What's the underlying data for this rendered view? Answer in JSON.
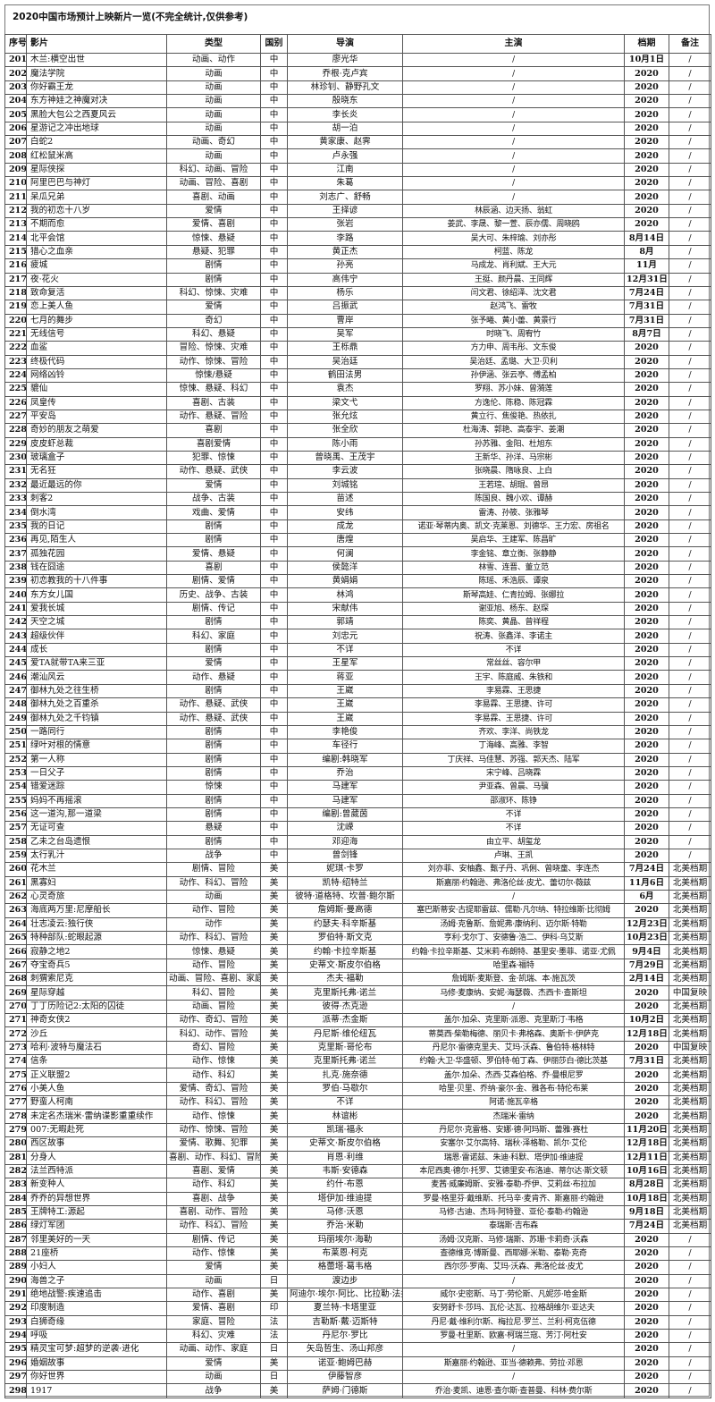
{
  "title": "2020中国市场预计上映新片一览(不完全统计,仅供参考)",
  "headers": [
    "序号",
    "影片",
    "类型",
    "国别",
    "导演",
    "主演",
    "档期",
    "备注"
  ],
  "rows": [
    [
      "201",
      "木兰:横空出世",
      "动画、动作",
      "中",
      "廖光华",
      "/",
      "10月1日",
      "/"
    ],
    [
      "202",
      "魔法学院",
      "动画",
      "中",
      "乔根·克卢宾",
      "/",
      "2020",
      "/"
    ],
    [
      "203",
      "你好霸王龙",
      "动画",
      "中",
      "林珍钊、静野孔文",
      "/",
      "2020",
      "/"
    ],
    [
      "204",
      "东方神娃之神魔对决",
      "动画",
      "中",
      "殷晓东",
      "/",
      "2020",
      "/"
    ],
    [
      "205",
      "黑脸大包公之西夏风云",
      "动画",
      "中",
      "李长炎",
      "/",
      "2020",
      "/"
    ],
    [
      "206",
      "星游记之冲出地球",
      "动画",
      "中",
      "胡一泊",
      "/",
      "2020",
      "/"
    ],
    [
      "207",
      "白蛇2",
      "动画、奇幻",
      "中",
      "黄家康、赵霁",
      "/",
      "2020",
      "/"
    ],
    [
      "208",
      "红松鼠米高",
      "动画",
      "中",
      "卢永强",
      "/",
      "2020",
      "/"
    ],
    [
      "209",
      "星际侠探",
      "科幻、动画、冒险",
      "中",
      "江南",
      "/",
      "2020",
      "/"
    ],
    [
      "210",
      "阿里巴巴与神灯",
      "动画、冒险、喜剧",
      "中",
      "朱葛",
      "/",
      "2020",
      "/"
    ],
    [
      "211",
      "呆瓜兄弟",
      "喜剧、动画",
      "中",
      "刘志广、舒畅",
      "/",
      "2020",
      "/"
    ],
    [
      "212",
      "我的初恋十八岁",
      "爱情",
      "中",
      "王择谚",
      "林辰涵、边天扬、翁虹",
      "2020",
      "/"
    ],
    [
      "213",
      "不期而愈",
      "爱情、喜剧",
      "中",
      "张岩",
      "姜武、李晟、黎一萱、辰亦儒、周晓鸥",
      "2020",
      "/"
    ],
    [
      "214",
      "北平会馆",
      "惊悚、悬疑",
      "中",
      "李路",
      "吴大可、朱梓瑜、刘亦彤",
      "8月14日",
      "/"
    ],
    [
      "215",
      "猎心之血亲",
      "悬疑、犯罪",
      "中",
      "黄正杰",
      "柯蓝、陈龙",
      "8月",
      "/"
    ],
    [
      "216",
      "疲城",
      "剧情",
      "中",
      "孙亮",
      "马成龙、肖利斌、王大元",
      "11月",
      "/"
    ],
    [
      "217",
      "夜·花火",
      "剧情",
      "中",
      "高伟宁",
      "王挺、颜丹晨、王同辉",
      "12月31日",
      "/"
    ],
    [
      "218",
      "致命复活",
      "科幻、惊悚、灾难",
      "中",
      "杨乐",
      "闫文君、徐绍泽、沈文君",
      "7月24日",
      "/"
    ],
    [
      "219",
      "恋上美人鱼",
      "爱情",
      "中",
      "吕振武",
      "赵鸿飞、雷牧",
      "7月31日",
      "/"
    ],
    [
      "220",
      "七月的舞步",
      "奇幻",
      "中",
      "曹岸",
      "张予曦、黄小蕾、黄景行",
      "7月31日",
      "/"
    ],
    [
      "221",
      "无线信号",
      "科幻、悬疑",
      "中",
      "吴军",
      "时晓飞、周宥竹",
      "8月7日",
      "/"
    ],
    [
      "222",
      "血鲨",
      "冒险、惊悚、灾难",
      "中",
      "王栎鼎",
      "方力申、周韦彤、文东俊",
      "2020",
      "/"
    ],
    [
      "223",
      "终极代码",
      "动作、惊悚、冒险",
      "中",
      "吴治廷",
      "吴治廷、孟璐、大卫·贝利",
      "2020",
      "/"
    ],
    [
      "224",
      "网络凶铃",
      "惊悚/悬疑",
      "中",
      "鹤田法男",
      "孙伊涵、张云亭、傅孟柏",
      "2020",
      "/"
    ],
    [
      "225",
      "貔仙",
      "惊悚、悬疑、科幻",
      "中",
      "袁杰",
      "罗翔、苏小妹、曾漪莲",
      "2020",
      "/"
    ],
    [
      "226",
      "凤皇传",
      "喜剧、古装",
      "中",
      "梁文弋",
      "方逸伦、陈稳、陈冠霖",
      "2020",
      "/"
    ],
    [
      "227",
      "平安岛",
      "动作、悬疑、冒险",
      "中",
      "张允炫",
      "黄立行、焦俊艳、热依扎",
      "2020",
      "/"
    ],
    [
      "228",
      "奇妙的朋友之萌爱",
      "喜剧",
      "中",
      "张全欣",
      "杜海涛、郭艳、高泰宇、姜潮",
      "2020",
      "/"
    ],
    [
      "229",
      "皮皮虾总裁",
      "喜剧爱情",
      "中",
      "陈小雨",
      "孙苏雅、金阳、杜旭东",
      "2020",
      "/"
    ],
    [
      "230",
      "玻璃盒子",
      "犯罪、惊悚",
      "中",
      "曾晓禹、王茂宇",
      "王新华、孙洋、马宗彬",
      "2020",
      "/"
    ],
    [
      "231",
      "无名狂",
      "动作、悬疑、武侠",
      "中",
      "李云波",
      "张晓晨、隋咏良、上白",
      "2020",
      "/"
    ],
    [
      "232",
      "最近最远的你",
      "爱情",
      "中",
      "刘城铭",
      "王若瑄、胡琨、曾昂",
      "2020",
      "/"
    ],
    [
      "233",
      "刺客2",
      "战争、古装",
      "中",
      "苗述",
      "陈国良、魏小欢、谭赫",
      "2020",
      "/"
    ],
    [
      "234",
      "倒水湾",
      "戏曲、爱情",
      "中",
      "安纬",
      "雷涛、孙筱、张雅琴",
      "2020",
      "/"
    ],
    [
      "235",
      "我的日记",
      "剧情",
      "中",
      "成龙",
      "诺亚·琴蒂内奥、凯文·克莱恩、刘德华、王力宏、房祖名",
      "2020",
      "/"
    ],
    [
      "236",
      "再见,陌生人",
      "剧情",
      "中",
      "唐煌",
      "吴启华、王建军、陈昌旷",
      "2020",
      "/"
    ],
    [
      "237",
      "孤独花园",
      "爱情、悬疑",
      "中",
      "何澜",
      "李金铭、章立衡、张静静",
      "2020",
      "/"
    ],
    [
      "238",
      "钱在囧途",
      "喜剧",
      "中",
      "侯懿洋",
      "林雪、连晋、董立范",
      "2020",
      "/"
    ],
    [
      "239",
      "初恋教我的十八件事",
      "剧情、爱情",
      "中",
      "黄娟娟",
      "陈瑶、禾浩辰、谭泉",
      "2020",
      "/"
    ],
    [
      "240",
      "东方女儿国",
      "历史、战争、古装",
      "中",
      "林鸿",
      "斯琴高娃、仁青拉姆、张娜拉",
      "2020",
      "/"
    ],
    [
      "241",
      "爱我长城",
      "剧情、传记",
      "中",
      "宋献伟",
      "谢亚旭、杨东、赵琛",
      "2020",
      "/"
    ],
    [
      "242",
      "天空之城",
      "剧情",
      "中",
      "郭靖",
      "陈奕、黄晶、曾祥程",
      "2020",
      "/"
    ],
    [
      "243",
      "超级伙伴",
      "科幻、家庭",
      "中",
      "刘忠元",
      "祝涛、张鑫洋、李诺主",
      "2020",
      "/"
    ],
    [
      "244",
      "成长",
      "剧情",
      "中",
      "不详",
      "不详",
      "2020",
      "/"
    ],
    [
      "245",
      "爱TA就带TA来三亚",
      "爱情",
      "中",
      "王星军",
      "常丝丝、容尔甲",
      "2020",
      "/"
    ],
    [
      "246",
      "潮汕风云",
      "动作、悬疑",
      "中",
      "蒋亚",
      "王宇、陈庭威、朱铁和",
      "2020",
      "/"
    ],
    [
      "247",
      "御林九处之往生桥",
      "剧情",
      "中",
      "王崴",
      "李易霖、王思捷",
      "2020",
      "/"
    ],
    [
      "248",
      "御林九处之百重杀",
      "动作、悬疑、武侠",
      "中",
      "王崴",
      "李易霖、王思捷、许可",
      "2020",
      "/"
    ],
    [
      "249",
      "御林九处之千钧镇",
      "动作、悬疑、武侠",
      "中",
      "王崴",
      "李易霖、王思捷、许可",
      "2020",
      "/"
    ],
    [
      "250",
      "一路同行",
      "剧情",
      "中",
      "李艳俊",
      "齐欢、李洋、尚铁龙",
      "2020",
      "/"
    ],
    [
      "251",
      "绿叶对根的情意",
      "剧情",
      "中",
      "车径行",
      "丁海峰、高雅、李智",
      "2020",
      "/"
    ],
    [
      "252",
      "第一人称",
      "剧情",
      "中",
      "编剧:韩晓军",
      "丁庆祥、马佳慧、苏强、郭天杰、陆军",
      "2020",
      "/"
    ],
    [
      "253",
      "一日父子",
      "剧情",
      "中",
      "乔治",
      "宋宁峰、吕晓霖",
      "2020",
      "/"
    ],
    [
      "254",
      "错爱迷踪",
      "惊悚",
      "中",
      "马建军",
      "尹亚森、曾晨、马骥",
      "2020",
      "/"
    ],
    [
      "255",
      "妈妈不再摇滚",
      "剧情",
      "中",
      "马建军",
      "邵淑环、陈铮",
      "2020",
      "/"
    ],
    [
      "256",
      "这一道沟,那一道梁",
      "剧情",
      "中",
      "编剧:曾葳茵",
      "不详",
      "2020",
      "/"
    ],
    [
      "257",
      "无证可查",
      "悬疑",
      "中",
      "沈嵘",
      "不详",
      "2020",
      "/"
    ],
    [
      "258",
      "乙未之台岛遗恨",
      "剧情",
      "中",
      "邓迎海",
      "由立平、胡玺龙",
      "2020",
      "/"
    ],
    [
      "259",
      "太行乳汁",
      "战争",
      "中",
      "曾剑锋",
      "卢琳、王凯",
      "2020",
      "/"
    ],
    [
      "260",
      "花木兰",
      "剧情、冒险",
      "美",
      "妮琪·卡罗",
      "刘亦菲、安柚鑫、甄子丹、巩俐、曾晓童、李连杰",
      "7月24日",
      "北美档期"
    ],
    [
      "261",
      "黑寡妇",
      "动作、科幻、冒险",
      "美",
      "凯特·绍特兰",
      "斯嘉丽·约翰逊、弗洛伦丝·皮尤、蕾切尔·薇兹",
      "11月6日",
      "北美档期"
    ],
    [
      "262",
      "心灵奇旅",
      "动画",
      "美",
      "彼特·道格特、坎普·鲍尔斯",
      "/",
      "6月",
      "北美档期"
    ],
    [
      "263",
      "海底两万里:尼摩船长",
      "动作、冒险",
      "美",
      "詹姆斯·曼高德",
      "塞巴斯蒂安·古提耶雷兹、儒勒·凡尔纳、特拉维斯·比彻姆",
      "2020",
      "北美档期"
    ],
    [
      "264",
      "壮志凌云:独行侠",
      "动作",
      "美",
      "约瑟夫·科辛斯基",
      "汤姆·克鲁斯、詹妮弗·康纳利、迈尔斯·特勒",
      "12月23日",
      "北美档期"
    ],
    [
      "265",
      "特种部队:蛇眼起源",
      "动作、科幻、冒险",
      "美",
      "罗伯特·斯文克",
      "亨利·戈尔丁、安德鲁·浩二、伊科·乌艾斯",
      "10月23日",
      "北美档期"
    ],
    [
      "266",
      "寂静之地2",
      "惊悚、悬疑",
      "美",
      "约翰·卡拉辛斯基",
      "约翰·卡拉辛斯基、艾米莉·布朗特、基里安·墨菲、诺亚·尤佩",
      "9月4日",
      "北美档期"
    ],
    [
      "267",
      "夺宝奇兵5",
      "动作、冒险",
      "美",
      "史蒂文·斯皮尔伯格",
      "哈里森·福特",
      "7月29日",
      "北美档期"
    ],
    [
      "268",
      "刺猬索尼克",
      "动画、冒险、喜剧、家庭",
      "美",
      "杰夫·福勒",
      "詹姆斯·麦斯登、金·凯瑞、本·施瓦茨",
      "2月14日",
      "北美档期"
    ],
    [
      "269",
      "星际穿越",
      "科幻、冒险",
      "美",
      "克里斯托弗·诺兰",
      "马修·麦康纳、安妮·海瑟薇、杰西卡·查斯坦",
      "2020",
      "中国复映"
    ],
    [
      "270",
      "丁丁历险记2:太阳的囚徒",
      "动画、冒险",
      "美",
      "彼得·杰克逊",
      "/",
      "2020",
      "北美档期"
    ],
    [
      "271",
      "神奇女侠2",
      "动作、奇幻、冒险",
      "美",
      "派蒂·杰金斯",
      "盖尔·加朵、克里斯·派恩、克里斯汀·韦格",
      "10月2日",
      "北美档期"
    ],
    [
      "272",
      "沙丘",
      "科幻、动作、冒险",
      "美",
      "丹尼斯·维伦纽瓦",
      "蒂莫西·柴勒梅德、丽贝卡·弗格森、奥斯卡·伊萨克",
      "12月18日",
      "北美档期"
    ],
    [
      "273",
      "哈利·波特与魔法石",
      "奇幻、冒险",
      "美",
      "克里斯·哥伦布",
      "丹尼尔·雷德克里夫、艾玛·沃森、鲁伯特·格林特",
      "2020",
      "中国复映"
    ],
    [
      "274",
      "信条",
      "动作、惊悚",
      "美",
      "克里斯托弗·诺兰",
      "约翰·大卫·华盛顿、罗伯特·帕丁森、伊丽莎白·德比茨基",
      "7月31日",
      "北美档期"
    ],
    [
      "275",
      "正义联盟2",
      "动作、科幻",
      "美",
      "扎克·施奈德",
      "盖尔·加朵、杰西·艾森伯格、乔·曼根尼罗",
      "2020",
      "北美档期"
    ],
    [
      "276",
      "小美人鱼",
      "爱情、奇幻、冒险",
      "美",
      "罗伯·马歇尔",
      "哈里·贝里、乔纳·豪尔-金、雅各布·特伦布莱",
      "2020",
      "北美档期"
    ],
    [
      "277",
      "野蛮人柯南",
      "动作、科幻、冒险",
      "美",
      "不详",
      "阿诺·施瓦辛格",
      "2020",
      "北美档期"
    ],
    [
      "278",
      "未定名杰瑞米·雷纳谍影重重续作",
      "动作、惊悚",
      "美",
      "林谊彬",
      "杰瑞米·雷纳",
      "2020",
      "北美档期"
    ],
    [
      "279",
      "007:无暇赴死",
      "动作、惊悚、冒险",
      "美",
      "凯瑞·福永",
      "丹尼尔·克雷格、安娜·德·阿玛斯、蕾雅·赛杜",
      "11月20日",
      "北美档期"
    ],
    [
      "280",
      "西区故事",
      "爱情、歌舞、犯罪",
      "美",
      "史蒂文·斯皮尔伯格",
      "安塞尔·艾尔高特、瑞秋·泽格勒、凯尔·艾伦",
      "12月18日",
      "北美档期"
    ],
    [
      "281",
      "分身人",
      "喜剧、动作、科幻、冒险",
      "美",
      "肖恩·利维",
      "瑞恩·雷诺兹、朱迪·科默、塔伊加·维迪提",
      "12月11日",
      "北美档期"
    ],
    [
      "282",
      "法兰西特派",
      "喜剧、爱情",
      "美",
      "韦斯·安德森",
      "本尼西奥·德尔·托罗、艾德里安·布洛迪、蒂尔达·斯文顿",
      "10月16日",
      "北美档期"
    ],
    [
      "283",
      "新变种人",
      "动作、科幻",
      "美",
      "约什·布恩",
      "麦茜·威廉姆斯、安雅·泰勒-乔伊、艾莉丝·布拉加",
      "8月28日",
      "北美档期"
    ],
    [
      "284",
      "乔乔的异想世界",
      "喜剧、战争",
      "美",
      "塔伊加·维迪提",
      "罗曼·格里芬·戴维斯、托马辛·麦肯齐、斯嘉丽·约翰逊",
      "10月18日",
      "北美档期"
    ],
    [
      "285",
      "王牌特工:源起",
      "喜剧、动作、冒险",
      "美",
      "马修·沃恩",
      "马修·古迪、杰玛·阿特登、亚伦·泰勒-约翰逊",
      "9月18日",
      "北美档期"
    ],
    [
      "286",
      "绿灯军团",
      "动作、科幻、冒险",
      "美",
      "乔治·米勒",
      "泰瑞斯·吉布森",
      "7月24日",
      "北美档期"
    ],
    [
      "287",
      "邻里美好的一天",
      "剧情、传记",
      "美",
      "玛丽埃尔·海勒",
      "汤姆·汉克斯、马修·瑞斯、苏珊·卡莉奇·沃森",
      "2020",
      "/"
    ],
    [
      "288",
      "21座桥",
      "动作、惊悚",
      "美",
      "布莱恩·柯克",
      "查德维克·博斯曼、西耶娜·米勒、泰勒·克奇",
      "2020",
      "/"
    ],
    [
      "289",
      "小妇人",
      "爱情",
      "美",
      "格蕾塔·葛韦格",
      "西尔莎·罗南、艾玛·沃森、弗洛伦丝·皮尤",
      "2020",
      "/"
    ],
    [
      "290",
      "海兽之子",
      "动画",
      "日",
      "渡边步",
      "/",
      "2020",
      "/"
    ],
    [
      "291",
      "绝地战警:疾速追击",
      "动作、喜剧",
      "美",
      "阿迪尔·埃尔·阿比、比拉勒·法拉赫",
      "威尔·史密斯、马丁·劳伦斯、凡妮莎·哈金斯",
      "2020",
      "/"
    ],
    [
      "292",
      "印度制造",
      "爱情、喜剧",
      "印",
      "夏兰特·卡塔里亚",
      "安努舒卡·莎玛、瓦伦·达瓦、拉格胡维尔·亚达夫",
      "2020",
      "/"
    ],
    [
      "293",
      "白狮奇缘",
      "家庭、冒险",
      "法",
      "吉勒斯·戴·迈斯特",
      "丹尼·戴·维利尔斯、梅拉尼·罗兰、兰利·柯克伍德",
      "2020",
      "/"
    ],
    [
      "294",
      "呼吸",
      "科幻、灾难",
      "法",
      "丹尼尔·罗比",
      "罗曼·杜里斯、欧嘉·柯瑞兰寇、芳汀·阿杜安",
      "2020",
      "/"
    ],
    [
      "295",
      "精灵宝可梦:超梦的逆袭·进化",
      "动画、动作、家庭",
      "日",
      "矢岛哲生、汤山邦彦",
      "/",
      "2020",
      "/"
    ],
    [
      "296",
      "婚姻故事",
      "爱情",
      "美",
      "诺亚·鲍姆巴赫",
      "斯嘉丽·约翰逊、亚当·德赖弗、劳拉·邓恩",
      "2020",
      "/"
    ],
    [
      "297",
      "你好世界",
      "动画",
      "日",
      "伊藤智彦",
      "/",
      "2020",
      "/"
    ],
    [
      "298",
      "1917",
      "战争",
      "美",
      "萨姆·门德斯",
      "乔治·麦凯、迪恩·查尔斯·查普曼、科林·费尔斯",
      "2020",
      "/"
    ]
  ]
}
